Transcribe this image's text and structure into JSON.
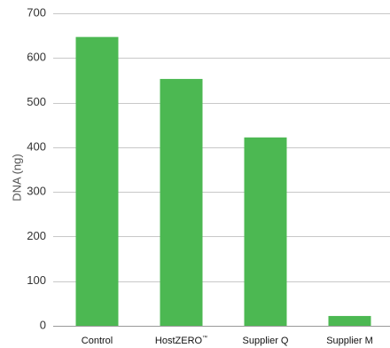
{
  "chart_data": {
    "type": "bar",
    "title": "",
    "xlabel": "",
    "ylabel": "DNA (ng)",
    "categories": [
      "Control",
      "HostZERO",
      "Supplier Q",
      "Supplier M"
    ],
    "category_superscripts": [
      "",
      "™",
      "",
      ""
    ],
    "values": [
      647,
      553,
      422,
      22
    ],
    "ylim": [
      0,
      700
    ],
    "yticks": [
      0,
      100,
      200,
      300,
      400,
      500,
      600,
      700
    ],
    "grid": true,
    "legend": "none",
    "bar_color": "#4cb852"
  }
}
